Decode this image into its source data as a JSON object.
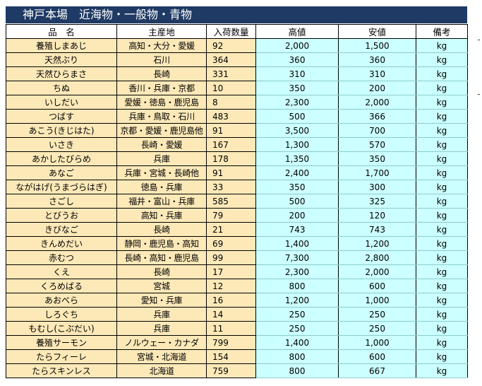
{
  "title": "神戸本場　近海物・一般物・青物",
  "columns": [
    "品　名",
    "主産地",
    "入荷数量",
    "高値",
    "安値",
    "備考"
  ],
  "rows": [
    {
      "name": "養殖しまあじ",
      "origin": "高知・大分・愛媛",
      "qty": "92",
      "high": "2,000",
      "low": "1,500",
      "unit": "kg"
    },
    {
      "name": "天然ぶり",
      "origin": "石川",
      "qty": "364",
      "high": "360",
      "low": "360",
      "unit": "kg"
    },
    {
      "name": "天然ひらまさ",
      "origin": "長崎",
      "qty": "331",
      "high": "310",
      "low": "310",
      "unit": "kg"
    },
    {
      "name": "ちぬ",
      "origin": "香川・兵庫・京都",
      "qty": "10",
      "high": "350",
      "low": "200",
      "unit": "kg"
    },
    {
      "name": "いしだい",
      "origin": "愛媛・徳島・鹿児島",
      "qty": "8",
      "high": "2,300",
      "low": "2,000",
      "unit": "kg"
    },
    {
      "name": "つばす",
      "origin": "兵庫・鳥取・石川",
      "qty": "483",
      "high": "500",
      "low": "366",
      "unit": "kg"
    },
    {
      "name": "あこう(きじはた)",
      "origin": "京都・愛媛・鹿児島他",
      "qty": "91",
      "high": "3,500",
      "low": "700",
      "unit": "kg"
    },
    {
      "name": "いさき",
      "origin": "長崎・愛媛",
      "qty": "167",
      "high": "1,300",
      "low": "570",
      "unit": "kg"
    },
    {
      "name": "あかしたびらめ",
      "origin": "兵庫",
      "qty": "178",
      "high": "1,350",
      "low": "350",
      "unit": "kg"
    },
    {
      "name": "あなご",
      "origin": "兵庫・宮城・長崎他",
      "qty": "91",
      "high": "2,400",
      "low": "1,700",
      "unit": "kg"
    },
    {
      "name": "ながはげ(うまづらはぎ)",
      "origin": "徳島・兵庫",
      "qty": "33",
      "high": "350",
      "low": "300",
      "unit": "kg"
    },
    {
      "name": "さごし",
      "origin": "福井・富山・兵庫",
      "qty": "585",
      "high": "500",
      "low": "325",
      "unit": "kg"
    },
    {
      "name": "とびうお",
      "origin": "高知・兵庫",
      "qty": "79",
      "high": "200",
      "low": "120",
      "unit": "kg"
    },
    {
      "name": "きびなご",
      "origin": "長崎",
      "qty": "21",
      "high": "743",
      "low": "743",
      "unit": "kg"
    },
    {
      "name": "きんめだい",
      "origin": "静岡・鹿児島・高知",
      "qty": "69",
      "high": "1,400",
      "low": "1,200",
      "unit": "kg"
    },
    {
      "name": "赤むつ",
      "origin": "長崎・高知・鹿児島",
      "qty": "99",
      "high": "7,300",
      "low": "2,800",
      "unit": "kg"
    },
    {
      "name": "くえ",
      "origin": "長崎",
      "qty": "17",
      "high": "2,300",
      "low": "2,000",
      "unit": "kg"
    },
    {
      "name": "くろめばる",
      "origin": "宮城",
      "qty": "12",
      "high": "800",
      "low": "600",
      "unit": "kg"
    },
    {
      "name": "あおべら",
      "origin": "愛知・兵庫",
      "qty": "16",
      "high": "1,200",
      "low": "1,000",
      "unit": "kg"
    },
    {
      "name": "しろぐち",
      "origin": "兵庫",
      "qty": "14",
      "high": "250",
      "low": "250",
      "unit": "kg"
    },
    {
      "name": "もむし(こぶだい)",
      "origin": "兵庫",
      "qty": "11",
      "high": "250",
      "low": "250",
      "unit": "kg"
    },
    {
      "name": "養殖サーモン",
      "origin": "ノルウェー・カナダ",
      "qty": "799",
      "high": "1,400",
      "low": "1,000",
      "unit": "kg"
    },
    {
      "name": "たらフィーレ",
      "origin": "宮城・北海道",
      "qty": "154",
      "high": "800",
      "low": "600",
      "unit": "kg"
    },
    {
      "name": "たらスキンレス",
      "origin": "北海道",
      "qty": "759",
      "high": "800",
      "low": "667",
      "unit": "kg"
    }
  ],
  "colors": {
    "title_bg": "#1f3a64",
    "left_fill": "#fde9b8",
    "right_fill": "#ccffff"
  }
}
